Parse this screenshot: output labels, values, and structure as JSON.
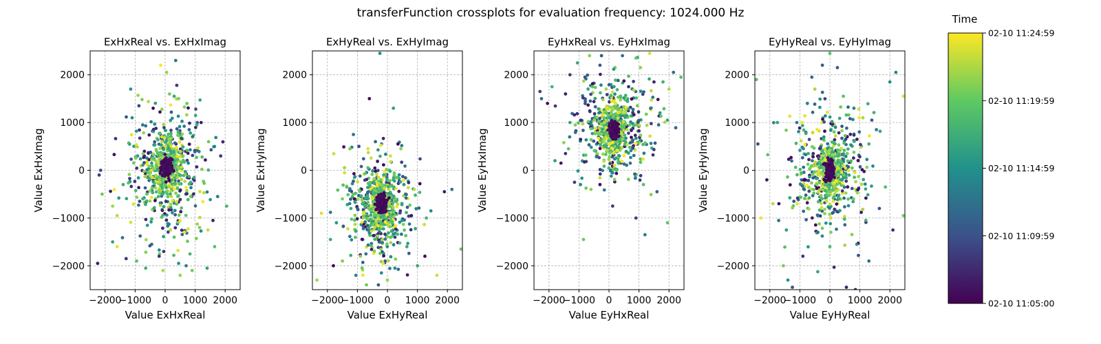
{
  "figure": {
    "title": "transferFunction crossplots for evaluation frequency: 1024.000 Hz",
    "colorbar": {
      "title": "Time",
      "colormap": [
        "#440154",
        "#3b528b",
        "#21918c",
        "#5ec962",
        "#fde725"
      ],
      "ticks": [
        "02-10 11:24:59",
        "02-10 11:19:59",
        "02-10 11:14:59",
        "02-10 11:09:59",
        "02-10 11:05:00"
      ]
    }
  },
  "chart_data": [
    {
      "type": "scatter",
      "title": "ExHxReal vs. ExHxImag",
      "xlabel": "Value ExHxReal",
      "ylabel": "Value ExHxImag",
      "xlim": [
        -2500,
        2500
      ],
      "ylim": [
        -2500,
        2500
      ],
      "xticks": [
        -2000,
        -1000,
        0,
        1000,
        2000
      ],
      "yticks": [
        -2000,
        -1000,
        0,
        1000,
        2000
      ],
      "xtick_labels": [
        "−2000",
        "−1000",
        "0",
        "1000",
        "2000"
      ],
      "ytick_labels": [
        "−2000",
        "−1000",
        "0",
        "1000",
        "2000"
      ],
      "grid": true,
      "core": {
        "center": [
          50,
          50
        ],
        "std": [
          200,
          200
        ]
      },
      "spread": {
        "center": [
          0,
          -50
        ],
        "std": [
          650,
          700
        ]
      },
      "points": [
        [
          -2250,
          -1950
        ],
        [
          -1750,
          -1500
        ],
        [
          -1600,
          -1600
        ],
        [
          -1300,
          -1850
        ],
        [
          -950,
          -1900
        ],
        [
          -650,
          -2050
        ],
        [
          -450,
          -1550
        ],
        [
          -200,
          -1800
        ],
        [
          450,
          -1950
        ],
        [
          500,
          -2200
        ],
        [
          900,
          -2100
        ],
        [
          700,
          -2000
        ],
        [
          1400,
          -2050
        ],
        [
          1150,
          -1200
        ],
        [
          1650,
          -1600
        ],
        [
          1750,
          -550
        ],
        [
          2050,
          -750
        ],
        [
          1850,
          300
        ],
        [
          1450,
          600
        ],
        [
          1200,
          1000
        ],
        [
          800,
          850
        ],
        [
          450,
          1500
        ],
        [
          300,
          1550
        ],
        [
          -150,
          2200
        ],
        [
          50,
          2050
        ],
        [
          350,
          2300
        ],
        [
          -1150,
          1700
        ],
        [
          -1100,
          1100
        ],
        [
          -750,
          950
        ],
        [
          -1600,
          -950
        ],
        [
          -2100,
          -500
        ],
        [
          -2200,
          -100
        ],
        [
          -2150,
          0
        ],
        [
          -1400,
          -300
        ],
        [
          -1750,
          -750
        ],
        [
          -400,
          1300
        ],
        [
          -850,
          -650
        ],
        [
          850,
          -550
        ],
        [
          650,
          -1300
        ],
        [
          300,
          -1400
        ]
      ]
    },
    {
      "type": "scatter",
      "title": "ExHyReal vs. ExHyImag",
      "xlabel": "Value ExHyReal",
      "ylabel": "Value ExHyImag",
      "xlim": [
        -2500,
        2500
      ],
      "ylim": [
        -2500,
        2500
      ],
      "xticks": [
        -2000,
        -1000,
        0,
        1000,
        2000
      ],
      "yticks": [
        -2000,
        -1000,
        0,
        1000,
        2000
      ],
      "xtick_labels": [
        "−2000",
        "−1000",
        "0",
        "1000",
        "2000"
      ],
      "ytick_labels": [
        "−2000",
        "−1000",
        "0",
        "1000",
        "2000"
      ],
      "grid": true,
      "core": {
        "center": [
          -200,
          -700
        ],
        "std": [
          180,
          180
        ]
      },
      "spread": {
        "center": [
          -300,
          -850
        ],
        "std": [
          550,
          550
        ]
      },
      "points": [
        [
          -2350,
          -2300
        ],
        [
          -2200,
          -900
        ],
        [
          -1900,
          -1450
        ],
        [
          -1500,
          -1900
        ],
        [
          -1050,
          -2200
        ],
        [
          -700,
          -2400
        ],
        [
          -250,
          2450
        ],
        [
          -600,
          1500
        ],
        [
          -950,
          500
        ],
        [
          -1250,
          450
        ],
        [
          -650,
          450
        ],
        [
          200,
          1300
        ],
        [
          350,
          550
        ],
        [
          450,
          450
        ],
        [
          800,
          -950
        ],
        [
          1300,
          -1000
        ],
        [
          1450,
          -850
        ],
        [
          1250,
          -1800
        ],
        [
          1650,
          -2200
        ],
        [
          1900,
          -450
        ],
        [
          2150,
          -400
        ],
        [
          2450,
          -1650
        ],
        [
          650,
          -1600
        ],
        [
          250,
          -2050
        ],
        [
          -300,
          -2400
        ],
        [
          -200,
          -2150
        ],
        [
          -1350,
          -350
        ],
        [
          -1700,
          -1100
        ],
        [
          -1100,
          -600
        ],
        [
          550,
          -300
        ],
        [
          900,
          -400
        ],
        [
          -400,
          600
        ],
        [
          -1800,
          -2000
        ],
        [
          -350,
          -150
        ],
        [
          350,
          -150
        ],
        [
          -900,
          -1800
        ],
        [
          -1500,
          -600
        ],
        [
          100,
          300
        ],
        [
          0,
          -2300
        ],
        [
          1000,
          -2000
        ]
      ]
    },
    {
      "type": "scatter",
      "title": "EyHxReal vs. EyHxImag",
      "xlabel": "Value EyHxReal",
      "ylabel": "Value EyHxImag",
      "xlim": [
        -2500,
        2500
      ],
      "ylim": [
        -2500,
        2500
      ],
      "xticks": [
        -2000,
        -1000,
        0,
        1000,
        2000
      ],
      "yticks": [
        -2000,
        -1000,
        0,
        1000,
        2000
      ],
      "xtick_labels": [
        "−2000",
        "−1000",
        "0",
        "1000",
        "2000"
      ],
      "ytick_labels": [
        "−2000",
        "−1000",
        "0",
        "1000",
        "2000"
      ],
      "grid": true,
      "core": {
        "center": [
          150,
          850
        ],
        "std": [
          160,
          180
        ]
      },
      "spread": {
        "center": [
          200,
          850
        ],
        "std": [
          600,
          550
        ]
      },
      "points": [
        [
          -2300,
          1650
        ],
        [
          -2050,
          1400
        ],
        [
          -1900,
          1750
        ],
        [
          -1450,
          1600
        ],
        [
          -1300,
          2000
        ],
        [
          -1050,
          2250
        ],
        [
          -800,
          1950
        ],
        [
          -550,
          1750
        ],
        [
          -650,
          2400
        ],
        [
          -300,
          2200
        ],
        [
          -1350,
          450
        ],
        [
          -1800,
          200
        ],
        [
          -1600,
          150
        ],
        [
          -850,
          -1450
        ],
        [
          -600,
          -400
        ],
        [
          -1150,
          -250
        ],
        [
          -1450,
          350
        ],
        [
          -250,
          2400
        ],
        [
          450,
          2400
        ],
        [
          900,
          2350
        ],
        [
          1050,
          2150
        ],
        [
          1350,
          2450
        ],
        [
          1500,
          1850
        ],
        [
          1700,
          1200
        ],
        [
          1950,
          1050
        ],
        [
          2150,
          2050
        ],
        [
          2400,
          1950
        ],
        [
          1950,
          -1100
        ],
        [
          1200,
          -1350
        ],
        [
          900,
          -1000
        ],
        [
          1600,
          -450
        ],
        [
          1150,
          -300
        ],
        [
          -950,
          -300
        ],
        [
          -300,
          -300
        ],
        [
          250,
          0
        ],
        [
          100,
          -50
        ],
        [
          -1300,
          1000
        ],
        [
          2000,
          1700
        ],
        [
          -2250,
          1500
        ],
        [
          1800,
          1850
        ]
      ]
    },
    {
      "type": "scatter",
      "title": "EyHyReal vs. EyHyImag",
      "xlabel": "Value EyHyReal",
      "ylabel": "Value EyHyImag",
      "xlim": [
        -2500,
        2500
      ],
      "ylim": [
        -2500,
        2500
      ],
      "xticks": [
        -2000,
        -1000,
        0,
        1000,
        2000
      ],
      "yticks": [
        -2000,
        -1000,
        0,
        1000,
        2000
      ],
      "xtick_labels": [
        "−2000",
        "−1000",
        "0",
        "1000",
        "2000"
      ],
      "ytick_labels": [
        "−2000",
        "−1000",
        "0",
        "1000",
        "2000"
      ],
      "grid": true,
      "core": {
        "center": [
          0,
          0
        ],
        "std": [
          160,
          180
        ]
      },
      "spread": {
        "center": [
          0,
          -50
        ],
        "std": [
          600,
          650
        ]
      },
      "points": [
        [
          -2450,
          1900
        ],
        [
          -2400,
          550
        ],
        [
          -2100,
          -200
        ],
        [
          -1700,
          -700
        ],
        [
          -1450,
          -1250
        ],
        [
          -1550,
          -2000
        ],
        [
          -1400,
          -2300
        ],
        [
          -1250,
          -2450
        ],
        [
          -1100,
          1000
        ],
        [
          -750,
          1400
        ],
        [
          -500,
          1700
        ],
        [
          -250,
          2200
        ],
        [
          0,
          2450
        ],
        [
          250,
          2150
        ],
        [
          450,
          1550
        ],
        [
          800,
          1300
        ],
        [
          1100,
          1100
        ],
        [
          1400,
          1050
        ],
        [
          1550,
          850
        ],
        [
          2000,
          1850
        ],
        [
          2200,
          2050
        ],
        [
          2450,
          1550
        ],
        [
          2450,
          -950
        ],
        [
          1650,
          -800
        ],
        [
          1300,
          550
        ],
        [
          1200,
          -1050
        ],
        [
          900,
          -1550
        ],
        [
          550,
          -2450
        ],
        [
          850,
          -2500
        ],
        [
          1300,
          -1900
        ],
        [
          -1900,
          -700
        ],
        [
          -1750,
          1000
        ],
        [
          -900,
          -1800
        ],
        [
          -400,
          -1300
        ],
        [
          0,
          -1600
        ],
        [
          -2300,
          -1000
        ],
        [
          -600,
          1950
        ],
        [
          1850,
          -350
        ],
        [
          -1200,
          -650
        ],
        [
          2100,
          -1250
        ]
      ]
    }
  ]
}
